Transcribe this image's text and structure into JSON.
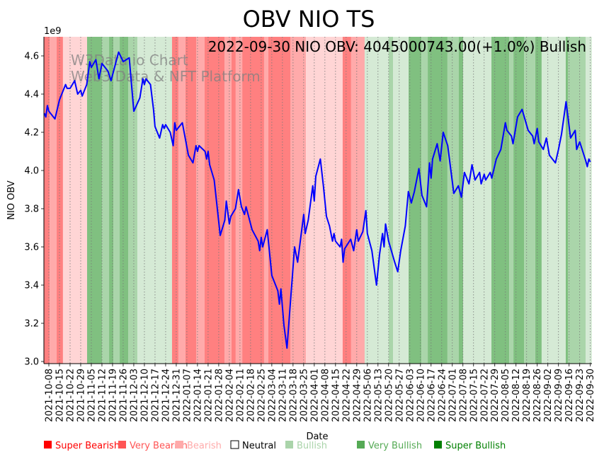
{
  "chart_data": {
    "type": "line",
    "title": "OBV NIO TS",
    "xlabel": "Date",
    "ylabel": "NIO OBV",
    "y_scale_label": "1e9",
    "annotation": "2022-09-30 NIO OBV: 4045000743.00(+1.0%) Bullish",
    "watermark": [
      "W3Data.io Chart",
      "Web3 Data & NFT Platform"
    ],
    "x_origin_date": "2021-10-08",
    "x_unit": "days since 2021-10-08",
    "xlim": [
      -3.3,
      358
    ],
    "ylim": [
      2.985,
      4.7
    ],
    "y_ticks": [
      3.0,
      3.2,
      3.4,
      3.6,
      3.8,
      4.0,
      4.2,
      4.4,
      4.6
    ],
    "y_tick_labels": [
      "3.0",
      "3.2",
      "3.4",
      "3.6",
      "3.8",
      "4.0",
      "4.2",
      "4.4",
      "4.6"
    ],
    "x_tick_labels": [
      "2021-10-08",
      "2021-10-15",
      "2021-10-22",
      "2021-10-29",
      "2021-11-05",
      "2021-11-12",
      "2021-11-19",
      "2021-11-26",
      "2021-12-03",
      "2021-12-10",
      "2021-12-17",
      "2021-12-24",
      "2021-12-31",
      "2022-01-07",
      "2022-01-14",
      "2022-01-21",
      "2022-01-28",
      "2022-02-04",
      "2022-02-11",
      "2022-02-18",
      "2022-02-25",
      "2022-03-04",
      "2022-03-11",
      "2022-03-18",
      "2022-03-25",
      "2022-04-01",
      "2022-04-08",
      "2022-04-15",
      "2022-04-22",
      "2022-04-29",
      "2022-05-06",
      "2022-05-13",
      "2022-05-20",
      "2022-05-27",
      "2022-06-03",
      "2022-06-10",
      "2022-06-17",
      "2022-06-24",
      "2022-07-01",
      "2022-07-08",
      "2022-07-15",
      "2022-07-22",
      "2022-07-29",
      "2022-08-05",
      "2022-08-12",
      "2022-08-19",
      "2022-08-26",
      "2022-09-02",
      "2022-09-09",
      "2022-09-16",
      "2022-09-23",
      "2022-09-30"
    ],
    "grid": "vertical dotted at x ticks",
    "series": [
      {
        "name": "NIO OBV (1e9)",
        "color": "#0000ff",
        "x": [
          -3,
          -2,
          -1,
          0,
          4,
          7,
          11,
          12,
          14,
          17,
          19,
          21,
          22,
          25,
          27,
          28,
          31,
          33,
          35,
          39,
          41,
          46,
          49,
          53,
          56,
          60,
          62,
          63,
          64,
          67,
          69,
          70,
          73,
          75,
          76,
          77,
          80,
          82,
          83,
          84,
          88,
          92,
          95,
          97,
          98,
          99,
          103,
          104,
          105,
          106,
          109,
          113,
          116,
          117,
          119,
          120,
          123,
          125,
          127,
          129,
          130,
          134,
          138,
          139,
          140,
          141,
          144,
          147,
          151,
          152,
          153,
          155,
          157,
          162,
          164,
          168,
          169,
          171,
          174,
          175,
          176,
          179,
          181,
          183,
          185,
          187,
          188,
          189,
          192,
          193,
          194,
          195,
          199,
          201,
          203,
          204,
          207,
          209,
          210,
          213,
          216,
          218,
          220,
          221,
          222,
          224,
          228,
          230,
          232,
          235,
          237,
          239,
          241,
          244,
          246,
          249,
          251,
          252,
          253,
          256,
          258,
          260,
          263,
          267,
          270,
          272,
          274,
          277,
          279,
          281,
          284,
          285,
          287,
          288,
          291,
          292,
          295,
          298,
          301,
          302,
          305,
          306,
          309,
          312,
          316,
          319,
          320,
          322,
          323,
          326,
          328,
          330,
          334,
          336,
          338,
          341,
          344,
          347,
          348,
          350,
          354,
          355,
          356,
          357
        ],
        "y": [
          4.3,
          4.28,
          4.34,
          4.31,
          4.27,
          4.37,
          4.45,
          4.43,
          4.43,
          4.47,
          4.4,
          4.42,
          4.39,
          4.45,
          4.57,
          4.54,
          4.58,
          4.48,
          4.56,
          4.52,
          4.47,
          4.62,
          4.57,
          4.59,
          4.31,
          4.38,
          4.48,
          4.45,
          4.48,
          4.45,
          4.32,
          4.23,
          4.17,
          4.24,
          4.22,
          4.24,
          4.2,
          4.13,
          4.25,
          4.21,
          4.25,
          4.08,
          4.04,
          4.13,
          4.1,
          4.13,
          4.1,
          4.06,
          4.1,
          4.03,
          3.95,
          3.66,
          3.74,
          3.84,
          3.72,
          3.76,
          3.8,
          3.9,
          3.81,
          3.77,
          3.81,
          3.69,
          3.63,
          3.58,
          3.65,
          3.6,
          3.69,
          3.45,
          3.37,
          3.3,
          3.38,
          3.19,
          3.07,
          3.6,
          3.52,
          3.77,
          3.67,
          3.74,
          3.92,
          3.84,
          3.97,
          4.06,
          3.92,
          3.76,
          3.71,
          3.63,
          3.67,
          3.63,
          3.6,
          3.64,
          3.52,
          3.59,
          3.64,
          3.58,
          3.69,
          3.63,
          3.68,
          3.79,
          3.67,
          3.58,
          3.4,
          3.56,
          3.67,
          3.6,
          3.72,
          3.63,
          3.52,
          3.47,
          3.58,
          3.71,
          3.89,
          3.83,
          3.89,
          4.01,
          3.87,
          3.81,
          4.04,
          3.96,
          4.06,
          4.14,
          4.05,
          4.2,
          4.13,
          3.88,
          3.92,
          3.86,
          3.99,
          3.93,
          4.03,
          3.95,
          3.99,
          3.93,
          3.98,
          3.95,
          3.99,
          3.96,
          4.06,
          4.11,
          4.25,
          4.21,
          4.18,
          4.14,
          4.28,
          4.32,
          4.21,
          4.18,
          4.14,
          4.22,
          4.15,
          4.11,
          4.17,
          4.08,
          4.04,
          4.11,
          4.19,
          4.36,
          4.17,
          4.21,
          4.11,
          4.15,
          4.05,
          4.02,
          4.06,
          4.045
        ]
      }
    ],
    "sentiment_bands": [
      [
        -4.2,
        0.5,
        -3
      ],
      [
        0.5,
        5.1,
        -2
      ],
      [
        5.1,
        9.3,
        -3
      ],
      [
        9.3,
        25.2,
        -1
      ],
      [
        25.2,
        35,
        3
      ],
      [
        35,
        39.7,
        2
      ],
      [
        39.7,
        42.5,
        3
      ],
      [
        42.5,
        46.7,
        2
      ],
      [
        46.7,
        52.3,
        3
      ],
      [
        52.3,
        58.4,
        2
      ],
      [
        58.4,
        81.2,
        1
      ],
      [
        81.2,
        85.4,
        -3
      ],
      [
        85.4,
        90.1,
        -2
      ],
      [
        90.1,
        97.1,
        -3
      ],
      [
        97.1,
        102.7,
        -2
      ],
      [
        102.7,
        115.8,
        -3
      ],
      [
        115.8,
        120.4,
        -2
      ],
      [
        120.4,
        123.2,
        -3
      ],
      [
        123.2,
        127.5,
        -2
      ],
      [
        127.5,
        141.9,
        -3
      ],
      [
        141.9,
        144.7,
        -2
      ],
      [
        144.7,
        159.2,
        -3
      ],
      [
        159.2,
        169.5,
        -2
      ],
      [
        169.5,
        193.7,
        -1
      ],
      [
        193.7,
        199.3,
        -3
      ],
      [
        199.3,
        208.2,
        -2
      ],
      [
        208.2,
        224.1,
        1
      ],
      [
        224.1,
        226.9,
        2
      ],
      [
        226.9,
        237.2,
        1
      ],
      [
        237.2,
        245.6,
        3
      ],
      [
        245.6,
        249.8,
        2
      ],
      [
        249.8,
        262.8,
        3
      ],
      [
        262.8,
        270.3,
        2
      ],
      [
        270.3,
        273.1,
        3
      ],
      [
        273.1,
        291.8,
        1
      ],
      [
        291.8,
        303.5,
        3
      ],
      [
        303.5,
        306.3,
        2
      ],
      [
        306.3,
        313.3,
        3
      ],
      [
        313.3,
        320.7,
        2
      ],
      [
        320.7,
        324.9,
        3
      ],
      [
        324.9,
        340.8,
        1
      ],
      [
        340.8,
        342.2,
        3
      ],
      [
        342.2,
        353.9,
        2
      ],
      [
        353.9,
        358,
        1
      ]
    ],
    "band_colors": {
      "-3": "#ff8080",
      "-2": "#ffaaaa",
      "-1": "#ffd5d5",
      "1": "#d5ead5",
      "2": "#aad5aa",
      "3": "#80c080"
    },
    "legend": [
      {
        "label": "Super Bearish",
        "color": "#ff0000"
      },
      {
        "label": "Very Bearish",
        "color": "#ff5555"
      },
      {
        "label": "Bearish",
        "color": "#ffaaaa"
      },
      {
        "label": "Neutral",
        "color": "#ffffff"
      },
      {
        "label": "Bullish",
        "color": "#aad4aa"
      },
      {
        "label": "Very Bullish",
        "color": "#55aa55"
      },
      {
        "label": "Super Bullish",
        "color": "#008000"
      }
    ],
    "legend_placement": "bottom"
  }
}
